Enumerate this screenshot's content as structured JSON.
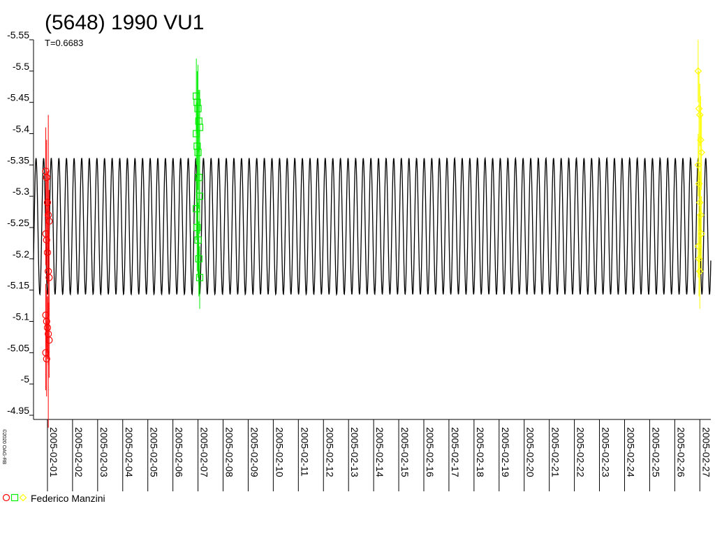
{
  "chart_data": {
    "type": "lightcurve",
    "title": "(5648) 1990 VU1",
    "subtitle": "T=0.6683",
    "credit": "©2020 OAG-RB",
    "legend": "Federico Manzini",
    "ylim": [
      -5.55,
      -4.95
    ],
    "yticks": [
      -5.55,
      -5.5,
      -5.45,
      -5.4,
      -5.35,
      -5.3,
      -5.25,
      -5.2,
      -5.15,
      -5.1,
      -5.05,
      -5,
      -4.95
    ],
    "y_inverted": true,
    "xlim": [
      "2005-01-31T10:40",
      "2005-02-27T10:30"
    ],
    "xticks": [
      "2005-02-01",
      "2005-02-02",
      "2005-02-03",
      "2005-02-04",
      "2005-02-05",
      "2005-02-06",
      "2005-02-07",
      "2005-02-08",
      "2005-02-09",
      "2005-02-10",
      "2005-02-11",
      "2005-02-12",
      "2005-02-13",
      "2005-02-14",
      "2005-02-15",
      "2005-02-16",
      "2005-02-17",
      "2005-02-18",
      "2005-02-19",
      "2005-02-20",
      "2005-02-21",
      "2005-02-22",
      "2005-02-23",
      "2005-02-24",
      "2005-02-25",
      "2005-02-26",
      "2005-02-27"
    ],
    "model": {
      "color": "#000000",
      "mean": -5.252,
      "amplitude": 0.109,
      "period": 0.3033,
      "epoch": "2005-02-01"
    },
    "series": [
      {
        "color": "#ff0000",
        "marker": "circle",
        "x": [
          "2005-02-01",
          "2005-02-01",
          "2005-02-01",
          "2005-02-01",
          "2005-02-01",
          "2005-02-01",
          "2005-02-01",
          "2005-02-01",
          "2005-02-01",
          "2005-02-01",
          "2005-02-01",
          "2005-02-01",
          "2005-02-01",
          "2005-02-01",
          "2005-02-01",
          "2005-02-01",
          "2005-02-01"
        ],
        "values": [
          -5.34,
          -5.33,
          -5.29,
          -5.27,
          -5.26,
          -5.24,
          -5.23,
          -5.21,
          -5.18,
          -5.17,
          -5.11,
          -5.1,
          -5.09,
          -5.08,
          -5.07,
          -5.05,
          -5.04
        ],
        "errors": [
          0.07,
          0.06,
          0.05,
          0.06,
          0.05,
          0.05,
          0.05,
          0.05,
          0.25,
          0.06,
          0.05,
          0.05,
          0.05,
          0.05,
          0.06,
          0.06,
          0.06
        ]
      },
      {
        "color": "#00ee00",
        "marker": "square",
        "x": [
          "2005-02-07",
          "2005-02-07",
          "2005-02-07",
          "2005-02-07",
          "2005-02-07",
          "2005-02-07",
          "2005-02-07",
          "2005-02-07",
          "2005-02-07",
          "2005-02-07",
          "2005-02-07",
          "2005-02-07",
          "2005-02-07",
          "2005-02-07",
          "2005-02-07"
        ],
        "values": [
          -5.46,
          -5.45,
          -5.44,
          -5.42,
          -5.41,
          -5.4,
          -5.38,
          -5.37,
          -5.33,
          -5.3,
          -5.28,
          -5.25,
          -5.23,
          -5.2,
          -5.17
        ],
        "errors": [
          0.06,
          0.05,
          0.07,
          0.05,
          0.06,
          0.05,
          0.07,
          0.06,
          0.05,
          0.06,
          0.05,
          0.07,
          0.06,
          0.06,
          0.05
        ]
      },
      {
        "color": "#ffff00",
        "marker": "diamond",
        "x": [
          "2005-02-27",
          "2005-02-27",
          "2005-02-27",
          "2005-02-27",
          "2005-02-27",
          "2005-02-27",
          "2005-02-27",
          "2005-02-27",
          "2005-02-27",
          "2005-02-27",
          "2005-02-27",
          "2005-02-27",
          "2005-02-27"
        ],
        "values": [
          -5.5,
          -5.44,
          -5.43,
          -5.39,
          -5.37,
          -5.35,
          -5.32,
          -5.29,
          -5.27,
          -5.24,
          -5.22,
          -5.2,
          -5.18
        ],
        "errors": [
          0.05,
          0.06,
          0.05,
          0.07,
          0.06,
          0.05,
          0.06,
          0.05,
          0.07,
          0.06,
          0.05,
          0.06,
          0.06
        ]
      }
    ]
  }
}
